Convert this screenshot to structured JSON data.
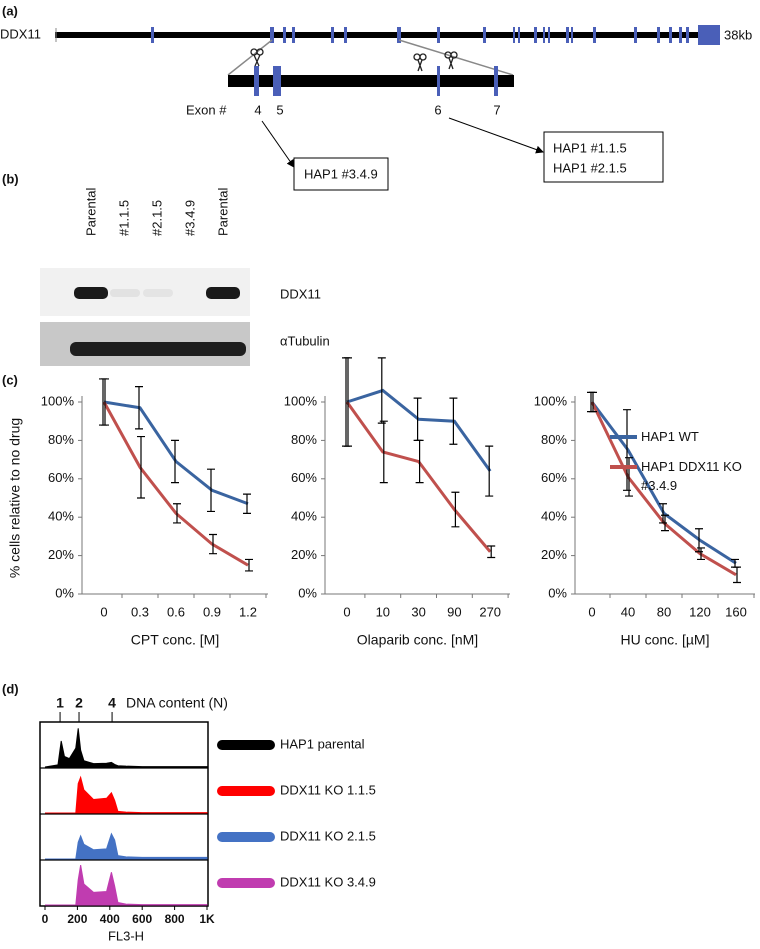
{
  "panel_labels": [
    "(a)",
    "(b)",
    "(c)",
    "(d)"
  ],
  "gene_diagram": {
    "gene": "DDX11",
    "length": "38kb",
    "exon_label": "Exon #",
    "exons": [
      "4",
      "5",
      "6",
      "7"
    ],
    "clone_box_1": [
      "HAP1 #3.4.9"
    ],
    "clone_box_2": [
      "HAP1 #1.1.5",
      "HAP1 #2.1.5"
    ]
  },
  "western_blot": {
    "lanes": [
      "Parental",
      "#1.1.5",
      "#2.1.5",
      "#3.4.9",
      "Parental"
    ],
    "bands": [
      "DDX11",
      "αTubulin"
    ]
  },
  "chart_data": [
    {
      "type": "line",
      "ylabel": "% cells relative to no drug",
      "xlabel": "CPT conc. [M]",
      "categories": [
        "0",
        "0.3",
        "0.6",
        "0.9",
        "1.2"
      ],
      "ylim": [
        0,
        100
      ],
      "yticks": [
        {
          "value": 0,
          "label": "0%"
        },
        {
          "value": 20,
          "label": "20%"
        },
        {
          "value": 40,
          "label": "40%"
        },
        {
          "value": 60,
          "label": "60%"
        },
        {
          "value": 80,
          "label": "80%"
        },
        {
          "value": 100,
          "label": "100%"
        }
      ],
      "series": [
        {
          "color": "#3a64a0",
          "values": [
            100,
            97,
            69,
            54,
            47
          ],
          "errors": [
            12,
            11,
            11,
            11,
            5
          ]
        },
        {
          "color": "#c0504d",
          "values": [
            100,
            66,
            42,
            26,
            15
          ],
          "errors": [
            12,
            16,
            5,
            5,
            3
          ]
        }
      ]
    },
    {
      "type": "line",
      "xlabel": "Olaparib conc. [nM]",
      "categories": [
        "0",
        "10",
        "30",
        "90",
        "270"
      ],
      "ylim": [
        0,
        100
      ],
      "yticks": [
        {
          "value": 0,
          "label": "0%"
        },
        {
          "value": 20,
          "label": "20%"
        },
        {
          "value": 40,
          "label": "40%"
        },
        {
          "value": 60,
          "label": "60%"
        },
        {
          "value": 80,
          "label": "80%"
        },
        {
          "value": 100,
          "label": "100%"
        }
      ],
      "series": [
        {
          "color": "#3a64a0",
          "values": [
            100,
            106,
            91,
            90,
            64
          ],
          "errors": [
            23,
            17,
            11,
            12,
            13
          ]
        },
        {
          "color": "#c0504d",
          "values": [
            100,
            74,
            69,
            44,
            22
          ],
          "errors": [
            23,
            16,
            11,
            9,
            3
          ]
        }
      ]
    },
    {
      "type": "line",
      "xlabel": "HU conc. [µM]",
      "categories": [
        "0",
        "40",
        "80",
        "120",
        "160"
      ],
      "ylim": [
        0,
        100
      ],
      "yticks": [
        {
          "value": 0,
          "label": "0%"
        },
        {
          "value": 20,
          "label": "20%"
        },
        {
          "value": 40,
          "label": "40%"
        },
        {
          "value": 60,
          "label": "60%"
        },
        {
          "value": 80,
          "label": "80%"
        },
        {
          "value": 100,
          "label": "100%"
        }
      ],
      "series": [
        {
          "name": "HAP1 WT",
          "color": "#3a64a0",
          "values": [
            100,
            75,
            42,
            28,
            16
          ],
          "errors": [
            5,
            21,
            5,
            6,
            2
          ]
        },
        {
          "name": "HAP1 DDX11 KO #3.4.9",
          "color": "#c0504d",
          "values": [
            100,
            61,
            37,
            21,
            10
          ],
          "errors": [
            5,
            10,
            4,
            3,
            4
          ]
        }
      ]
    },
    {
      "type": "area",
      "xlabel": "FL3-H",
      "secondary_xlabel": "DNA content (N)",
      "x": [
        0,
        80,
        100,
        120,
        150,
        190,
        205,
        220,
        240,
        300,
        380,
        410,
        430,
        450,
        500,
        600,
        1000
      ],
      "xlim": [
        0,
        1000
      ],
      "ylim": [
        0,
        100
      ],
      "xticks": [
        0,
        200,
        400,
        600,
        800,
        {
          "value": 1000,
          "label": "1K"
        }
      ],
      "secondary_xticks": [
        {
          "value": 93,
          "label": "1"
        },
        {
          "value": 210,
          "label": "2"
        },
        {
          "value": 414,
          "label": "4"
        }
      ],
      "series": [
        {
          "name": "HAP1 parental",
          "color": "#000000",
          "values": [
            0,
            5,
            62,
            25,
            20,
            45,
            92,
            40,
            15,
            8,
            9,
            11,
            6,
            3,
            2,
            1,
            1
          ]
        },
        {
          "name": "DDX11 KO 1.1.5",
          "color": "#ff0000",
          "values": [
            0,
            0,
            0,
            0,
            0,
            0,
            70,
            85,
            55,
            32,
            35,
            48,
            30,
            4,
            2,
            1,
            1
          ]
        },
        {
          "name": "DDX11 KO 2.1.5",
          "color": "#4472c4",
          "values": [
            0,
            0,
            0,
            0,
            0,
            0,
            40,
            55,
            35,
            22,
            24,
            60,
            45,
            8,
            5,
            4,
            4
          ]
        },
        {
          "name": "DDX11 KO 3.4.9",
          "color": "#c03cb0",
          "values": [
            0,
            0,
            0,
            0,
            0,
            0,
            60,
            95,
            50,
            30,
            32,
            78,
            45,
            6,
            2,
            1,
            1
          ]
        }
      ]
    }
  ]
}
